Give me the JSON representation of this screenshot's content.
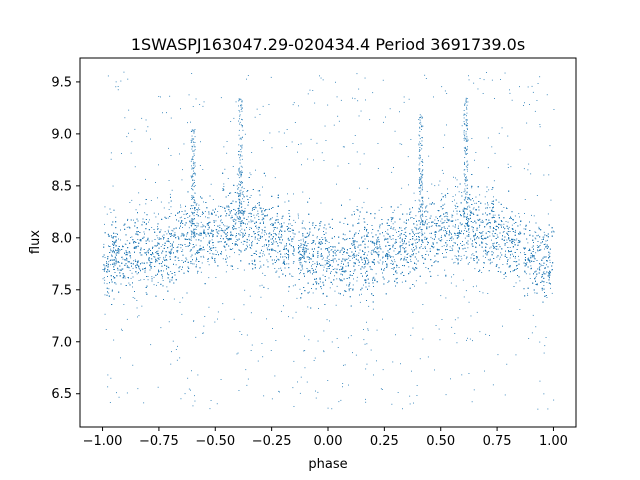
{
  "chart_data": {
    "type": "scatter",
    "title": "1SWASPJ163047.29-020434.4 Period 3691739.0s",
    "xlabel": "phase",
    "ylabel": "flux",
    "xlim": [
      -1.1,
      1.1
    ],
    "ylim": [
      6.18,
      9.73
    ],
    "x_ticks": [
      -1.0,
      -0.75,
      -0.5,
      -0.25,
      0.0,
      0.25,
      0.5,
      0.75,
      1.0
    ],
    "x_tick_labels": [
      "−1.00",
      "−0.75",
      "−0.50",
      "−0.25",
      "0.00",
      "0.25",
      "0.50",
      "0.75",
      "1.00"
    ],
    "y_ticks": [
      6.5,
      7.0,
      7.5,
      8.0,
      8.5,
      9.0,
      9.5
    ],
    "y_tick_labels": [
      "6.5",
      "7.0",
      "7.5",
      "8.0",
      "8.5",
      "9.0",
      "9.5"
    ],
    "grid": false,
    "legend": "none",
    "marker_color": "#1f77b4",
    "series": [
      {
        "phase": [
          -1.0,
          -0.9,
          -0.8,
          -0.7,
          -0.6,
          -0.5,
          -0.4,
          -0.3,
          -0.2,
          -0.15,
          -0.14,
          -0.1,
          0.0,
          0.1,
          0.2,
          0.3,
          0.4,
          0.5,
          0.6,
          0.7,
          0.8,
          0.85,
          0.86,
          0.9,
          1.0
        ],
        "mean_flux": [
          7.8,
          7.82,
          7.86,
          7.92,
          8.0,
          8.08,
          8.12,
          8.08,
          7.98,
          7.93,
          7.9,
          7.84,
          7.8,
          7.82,
          7.86,
          7.92,
          8.0,
          8.08,
          8.12,
          8.08,
          7.98,
          7.93,
          7.9,
          7.84,
          7.8
        ],
        "band_halfwidth": 0.34,
        "flux_range": [
          6.35,
          9.6
        ]
      }
    ],
    "spikes": [
      {
        "phase": -0.6,
        "flux_top": 9.05
      },
      {
        "phase": -0.39,
        "flux_top": 9.35
      },
      {
        "phase": 0.41,
        "flux_top": 9.2
      },
      {
        "phase": 0.61,
        "flux_top": 9.35
      }
    ],
    "gaps": [
      -0.14,
      0.86
    ]
  }
}
